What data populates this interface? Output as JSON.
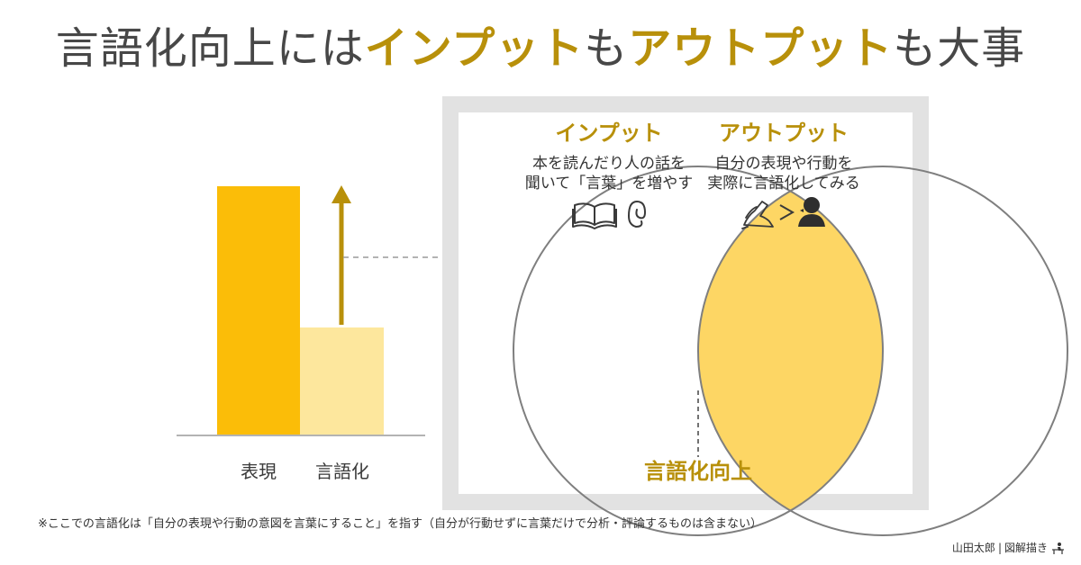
{
  "title": {
    "prefix": "言語化向上には",
    "input_word": "インプット",
    "middle": "も",
    "output_word": "アウトプット",
    "suffix": "も大事"
  },
  "bar_chart": {
    "labels": [
      "表現",
      "言語化"
    ],
    "fill_ratios": [
      1.0,
      0.43
    ],
    "colors": [
      "#fbbd08",
      "#fde79d"
    ],
    "arrow_color": "#b8900a"
  },
  "venn": {
    "input_heading": "インプット",
    "input_line1": "本を読んだり人の話を",
    "input_line2": "聞いて「言葉」を増やす",
    "input_icons": [
      "book-icon",
      "ear-icon"
    ],
    "output_heading": "アウトプット",
    "output_line1": "自分の表現や行動を",
    "output_line2": "実際に言語化してみる",
    "output_icons": [
      "writing-hand-icon",
      "speaking-head-icon"
    ],
    "overlap_label": "言語化向上",
    "overlap_color": "#fdd664",
    "accent_color": "#b8900a"
  },
  "footnote": "※ここでの言語化は「自分の表現や行動の意図を言葉にすること」を指す（自分が行動せずに言葉だけで分析・評論するものは含まない）",
  "credit": {
    "author": "山田太郎",
    "separator": "|",
    "site": "図解描き"
  }
}
